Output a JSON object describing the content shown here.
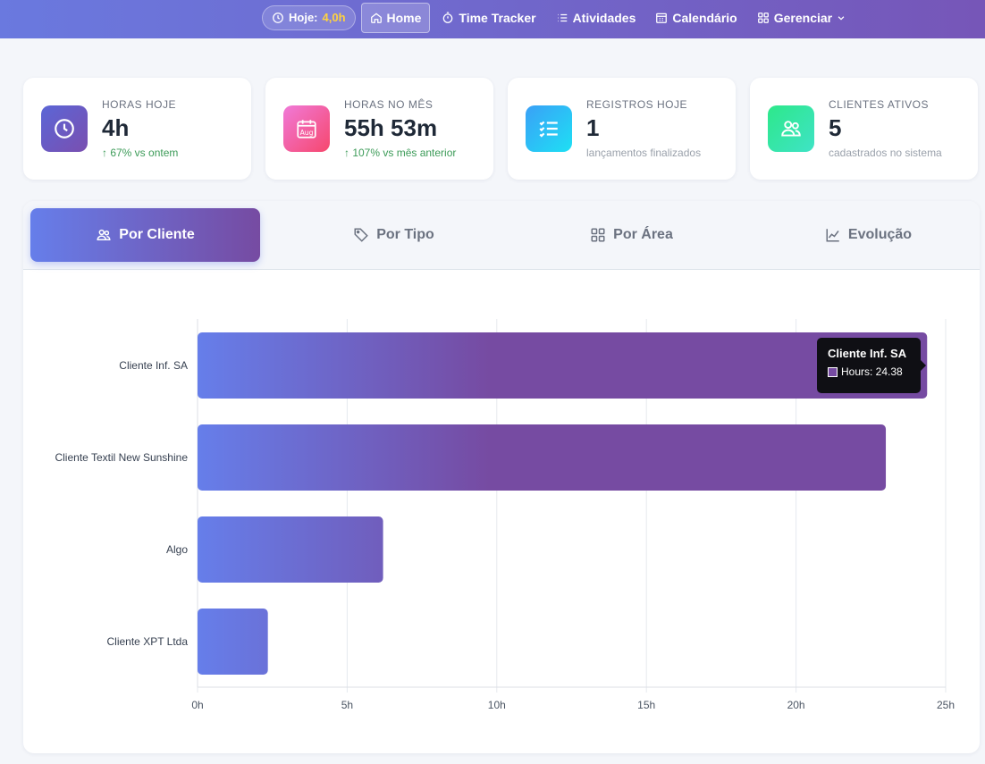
{
  "nav": {
    "today_label": "Hoje:",
    "today_value": "4,0h",
    "items": [
      {
        "label": "Home",
        "icon": "home-icon",
        "active": true
      },
      {
        "label": "Time Tracker",
        "icon": "stopwatch-icon"
      },
      {
        "label": "Atividades",
        "icon": "list-icon"
      },
      {
        "label": "Calendário",
        "icon": "calendar-icon"
      },
      {
        "label": "Gerenciar",
        "icon": "grid-icon"
      }
    ]
  },
  "stats": [
    {
      "label": "HORAS HOJE",
      "value": "4h",
      "sub": "↑ 67% vs ontem",
      "icon": "clock-icon",
      "color": "#6a5fc8"
    },
    {
      "label": "HORAS NO MÊS",
      "value": "55h 53m",
      "sub": "↑ 107% vs mês anterior",
      "icon": "calendar-month-icon",
      "icon_text": "Aug",
      "color": "#f3567f"
    },
    {
      "label": "REGISTROS HOJE",
      "value": "1",
      "sub": "lançamentos finalizados",
      "icon": "checklist-icon",
      "color": "#2ab3f5"
    },
    {
      "label": "CLIENTES ATIVOS",
      "value": "5",
      "sub": "cadastrados no sistema",
      "icon": "users-icon",
      "color": "#35e08f"
    }
  ],
  "tabs": [
    {
      "label": "Por Cliente",
      "icon": "users-icon",
      "active": true
    },
    {
      "label": "Por Tipo",
      "icon": "tag-icon"
    },
    {
      "label": "Por Área",
      "icon": "grid-icon"
    },
    {
      "label": "Evolução",
      "icon": "line-chart-icon"
    }
  ],
  "chart_data": {
    "type": "bar",
    "orientation": "horizontal",
    "categories": [
      "Cliente Inf. SA",
      "Cliente Textil New Sunshine",
      "Algo",
      "Cliente XPT Ltda"
    ],
    "series": [
      {
        "name": "Hours",
        "values": [
          24.38,
          23.0,
          6.2,
          2.35
        ]
      }
    ],
    "xlim": [
      0,
      25
    ],
    "x_ticks": [
      "0h",
      "5h",
      "10h",
      "15h",
      "20h",
      "25h"
    ],
    "grid": true,
    "colors": {
      "start": "#667eea",
      "end": "#764ba2"
    },
    "tooltip": {
      "title": "Cliente Inf. SA",
      "text": "Hours: 24.38"
    }
  }
}
